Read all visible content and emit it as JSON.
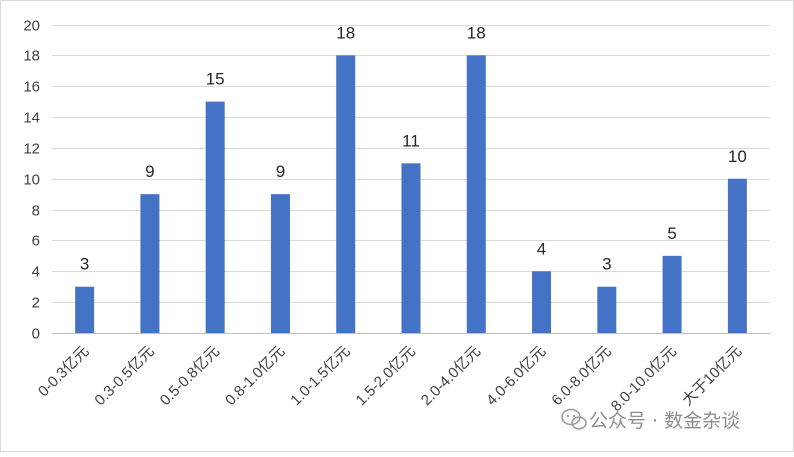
{
  "chart_data": {
    "type": "bar",
    "categories": [
      "0-0.3亿元",
      "0.3-0.5亿元",
      "0.5-0.8亿元",
      "0.8-1.0亿元",
      "1.0-1.5亿元",
      "1.5-2.0亿元",
      "2.0-4.0亿元",
      "4.0-6.0亿元",
      "6.0-8.0亿元",
      "8.0-10.0亿元",
      "大于10亿元"
    ],
    "values": [
      3,
      9,
      15,
      9,
      18,
      11,
      18,
      4,
      3,
      5,
      10
    ],
    "title": "",
    "xlabel": "",
    "ylabel": "",
    "ylim": [
      0,
      20
    ],
    "yticks": [
      "0",
      "2",
      "4",
      "6",
      "8",
      "10",
      "12",
      "14",
      "16",
      "18",
      "20"
    ],
    "grid": true,
    "legend": "none",
    "bar_color": "#4472c4",
    "data_labels": [
      "3",
      "9",
      "15",
      "9",
      "18",
      "11",
      "18",
      "4",
      "3",
      "5",
      "10"
    ]
  },
  "watermark": {
    "icon": "wechat-icon",
    "text": "公众号 · 数金杂谈"
  }
}
